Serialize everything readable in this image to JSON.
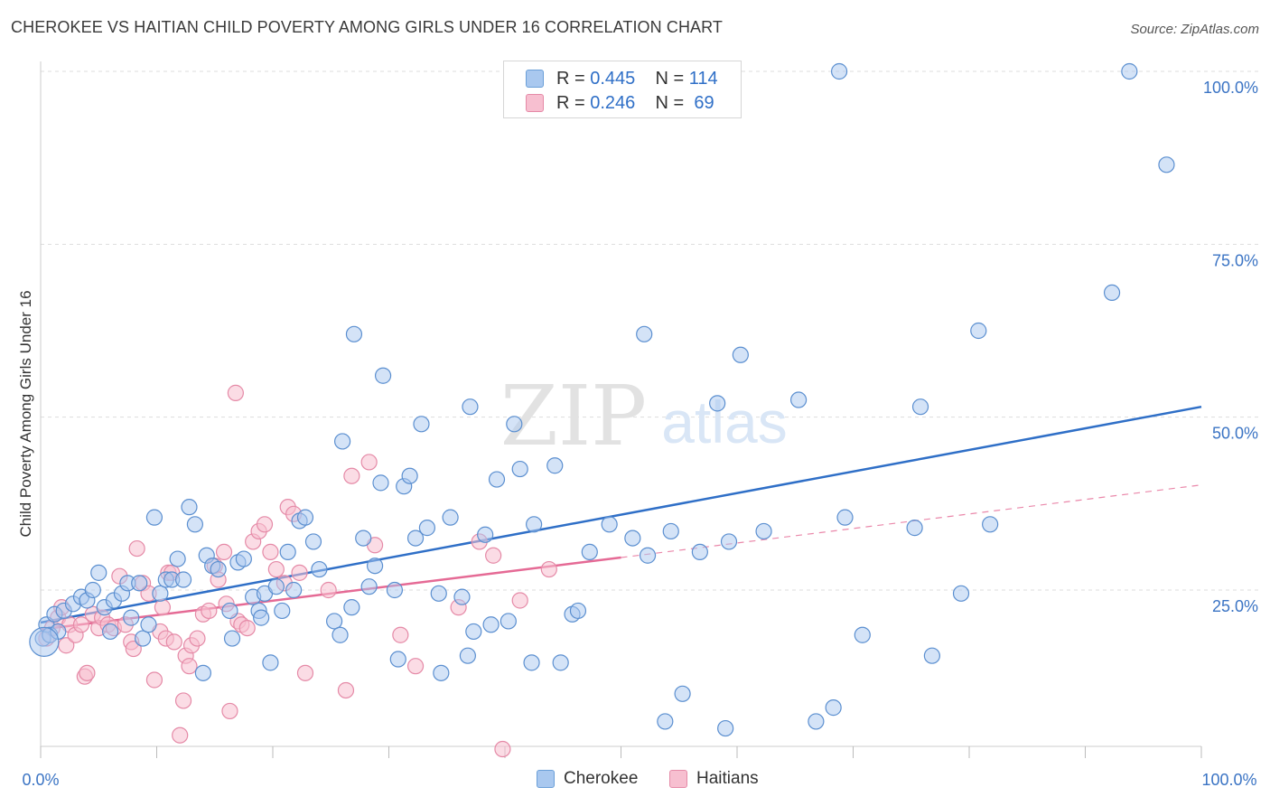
{
  "title": "CHEROKEE VS HAITIAN CHILD POVERTY AMONG GIRLS UNDER 16 CORRELATION CHART",
  "source": "Source: ZipAtlas.com",
  "watermark": {
    "zip": "ZIP",
    "atlas": "atlas"
  },
  "legend": {
    "items": [
      {
        "r_label": "R =",
        "r_value": "0.445",
        "n_label": "N =",
        "n_value": "114",
        "color": "#a9c8ef",
        "border": "#6a9fd8"
      },
      {
        "r_label": "R =",
        "r_value": "0.246",
        "n_label": "N =",
        "n_value": "69",
        "color": "#f7bfd0",
        "border": "#e58aa7"
      }
    ]
  },
  "bottom_legend": [
    "Cherokee",
    "Haitians"
  ],
  "chart_data": {
    "type": "scatter",
    "title": "CHEROKEE VS HAITIAN CHILD POVERTY AMONG GIRLS UNDER 16 CORRELATION CHART",
    "xlabel": "",
    "ylabel": "Child Poverty Among Girls Under 16",
    "xlim": [
      0,
      100
    ],
    "ylim": [
      0,
      102
    ],
    "x_tick_labels": [
      "0.0%",
      "100.0%"
    ],
    "y_ticks": [
      25,
      50,
      75,
      100
    ],
    "y_tick_labels": [
      "25.0%",
      "50.0%",
      "75.0%",
      "100.0%"
    ],
    "grid": true,
    "legend_position": "top-center",
    "colors": {
      "cherokee": "#2f6fc7",
      "cherokee_fill": "#a9c8ef",
      "haitians": "#e56a95",
      "haitians_fill": "#f7bfd0"
    },
    "series": [
      {
        "name": "Cherokee",
        "r": 0.445,
        "n": 114,
        "trend": {
          "x": [
            0,
            100
          ],
          "y": [
            20.3,
            51.5
          ],
          "style": "solid"
        },
        "points": [
          [
            0.2,
            18.0
          ],
          [
            0.5,
            20.0
          ],
          [
            0.8,
            18.5
          ],
          [
            1.2,
            21.5
          ],
          [
            1.5,
            19.0
          ],
          [
            2.0,
            22.0
          ],
          [
            2.8,
            23.0
          ],
          [
            3.5,
            24.0
          ],
          [
            4.0,
            23.5
          ],
          [
            4.5,
            25.0
          ],
          [
            5.0,
            27.5
          ],
          [
            5.5,
            22.5
          ],
          [
            6.0,
            19.0
          ],
          [
            6.3,
            23.5
          ],
          [
            7.0,
            24.5
          ],
          [
            7.5,
            26.0
          ],
          [
            7.8,
            21.0
          ],
          [
            8.5,
            26.0
          ],
          [
            8.8,
            18.0
          ],
          [
            9.3,
            20.0
          ],
          [
            9.8,
            35.5
          ],
          [
            10.3,
            24.5
          ],
          [
            10.8,
            26.5
          ],
          [
            11.3,
            26.5
          ],
          [
            11.8,
            29.5
          ],
          [
            12.3,
            26.5
          ],
          [
            12.8,
            37.0
          ],
          [
            13.3,
            34.5
          ],
          [
            14.0,
            13.0
          ],
          [
            14.3,
            30.0
          ],
          [
            14.8,
            28.5
          ],
          [
            15.3,
            28.0
          ],
          [
            16.3,
            22.0
          ],
          [
            16.5,
            18.0
          ],
          [
            17.0,
            29.0
          ],
          [
            17.5,
            29.5
          ],
          [
            18.3,
            24.0
          ],
          [
            18.8,
            22.0
          ],
          [
            19.0,
            21.0
          ],
          [
            19.3,
            24.5
          ],
          [
            19.8,
            14.5
          ],
          [
            20.3,
            25.5
          ],
          [
            20.8,
            22.0
          ],
          [
            21.3,
            30.5
          ],
          [
            21.8,
            25.0
          ],
          [
            22.3,
            35.0
          ],
          [
            22.8,
            35.5
          ],
          [
            23.5,
            32.0
          ],
          [
            24.0,
            28.0
          ],
          [
            25.3,
            20.5
          ],
          [
            25.8,
            18.5
          ],
          [
            26.0,
            46.5
          ],
          [
            26.8,
            22.5
          ],
          [
            27.0,
            62.0
          ],
          [
            27.8,
            32.5
          ],
          [
            28.3,
            25.5
          ],
          [
            28.8,
            28.5
          ],
          [
            29.3,
            40.5
          ],
          [
            29.5,
            56.0
          ],
          [
            30.5,
            25.0
          ],
          [
            30.8,
            15.0
          ],
          [
            31.3,
            40.0
          ],
          [
            31.8,
            41.5
          ],
          [
            32.3,
            32.5
          ],
          [
            32.8,
            49.0
          ],
          [
            33.3,
            34.0
          ],
          [
            34.3,
            24.5
          ],
          [
            34.5,
            13.0
          ],
          [
            35.3,
            35.5
          ],
          [
            36.3,
            24.0
          ],
          [
            36.8,
            15.5
          ],
          [
            37.0,
            51.5
          ],
          [
            37.3,
            19.0
          ],
          [
            38.3,
            33.0
          ],
          [
            38.8,
            20.0
          ],
          [
            39.3,
            41.0
          ],
          [
            40.3,
            20.5
          ],
          [
            40.8,
            49.0
          ],
          [
            41.3,
            42.5
          ],
          [
            42.3,
            14.5
          ],
          [
            42.5,
            34.5
          ],
          [
            44.3,
            43.0
          ],
          [
            44.8,
            14.5
          ],
          [
            45.8,
            21.5
          ],
          [
            46.3,
            22.0
          ],
          [
            47.3,
            30.5
          ],
          [
            49.0,
            34.5
          ],
          [
            51.0,
            32.5
          ],
          [
            52.0,
            62.0
          ],
          [
            52.3,
            30.0
          ],
          [
            53.8,
            6.0
          ],
          [
            54.3,
            33.5
          ],
          [
            55.3,
            10.0
          ],
          [
            56.8,
            30.5
          ],
          [
            58.3,
            52.0
          ],
          [
            59.0,
            5.0
          ],
          [
            59.3,
            32.0
          ],
          [
            60.3,
            59.0
          ],
          [
            62.3,
            33.5
          ],
          [
            65.3,
            52.5
          ],
          [
            66.8,
            6.0
          ],
          [
            68.3,
            8.0
          ],
          [
            68.8,
            100.0
          ],
          [
            69.3,
            35.5
          ],
          [
            70.8,
            18.5
          ],
          [
            75.3,
            34.0
          ],
          [
            75.8,
            51.5
          ],
          [
            76.8,
            15.5
          ],
          [
            79.3,
            24.5
          ],
          [
            80.8,
            62.5
          ],
          [
            81.8,
            34.5
          ],
          [
            92.3,
            68.0
          ],
          [
            93.8,
            100.0
          ],
          [
            97.0,
            86.5
          ]
        ]
      },
      {
        "name": "Haitians",
        "r": 0.246,
        "n": 69,
        "trend": {
          "x": [
            0,
            50,
            100
          ],
          "y": [
            19.3,
            29.7,
            40.2
          ],
          "solid_until": 50
        },
        "points": [
          [
            0.5,
            18.0
          ],
          [
            1.0,
            19.5
          ],
          [
            1.5,
            21.0
          ],
          [
            1.8,
            22.5
          ],
          [
            2.2,
            17.0
          ],
          [
            2.5,
            20.0
          ],
          [
            3.0,
            18.5
          ],
          [
            3.5,
            20.0
          ],
          [
            3.8,
            12.5
          ],
          [
            4.0,
            13.0
          ],
          [
            4.5,
            21.5
          ],
          [
            5.0,
            19.5
          ],
          [
            5.3,
            21.0
          ],
          [
            5.8,
            20.0
          ],
          [
            6.3,
            19.5
          ],
          [
            6.8,
            27.0
          ],
          [
            7.3,
            20.0
          ],
          [
            7.8,
            17.5
          ],
          [
            8.0,
            16.5
          ],
          [
            8.3,
            31.0
          ],
          [
            8.8,
            26.0
          ],
          [
            9.3,
            24.5
          ],
          [
            9.8,
            12.0
          ],
          [
            10.3,
            19.0
          ],
          [
            10.5,
            22.5
          ],
          [
            10.8,
            18.0
          ],
          [
            11.0,
            27.5
          ],
          [
            11.3,
            27.5
          ],
          [
            11.5,
            17.5
          ],
          [
            12.0,
            4.0
          ],
          [
            12.3,
            9.0
          ],
          [
            12.5,
            15.5
          ],
          [
            12.8,
            14.0
          ],
          [
            13.0,
            17.0
          ],
          [
            13.5,
            18.0
          ],
          [
            14.0,
            21.5
          ],
          [
            14.5,
            22.0
          ],
          [
            15.0,
            28.5
          ],
          [
            15.3,
            26.5
          ],
          [
            15.8,
            30.5
          ],
          [
            16.0,
            23.0
          ],
          [
            16.3,
            7.5
          ],
          [
            16.8,
            53.5
          ],
          [
            17.0,
            20.5
          ],
          [
            17.3,
            20.0
          ],
          [
            17.8,
            19.5
          ],
          [
            18.3,
            32.0
          ],
          [
            18.8,
            33.5
          ],
          [
            19.3,
            34.5
          ],
          [
            19.8,
            30.5
          ],
          [
            20.3,
            28.0
          ],
          [
            21.0,
            26.0
          ],
          [
            21.3,
            37.0
          ],
          [
            21.8,
            36.0
          ],
          [
            22.3,
            27.5
          ],
          [
            22.8,
            13.0
          ],
          [
            24.8,
            25.0
          ],
          [
            26.3,
            10.5
          ],
          [
            26.8,
            41.5
          ],
          [
            28.3,
            43.5
          ],
          [
            28.8,
            31.5
          ],
          [
            31.0,
            18.5
          ],
          [
            32.3,
            14.0
          ],
          [
            36.0,
            22.5
          ],
          [
            37.8,
            32.0
          ],
          [
            39.0,
            30.0
          ],
          [
            39.8,
            2.0
          ],
          [
            41.3,
            23.5
          ],
          [
            43.8,
            28.0
          ]
        ]
      }
    ]
  }
}
